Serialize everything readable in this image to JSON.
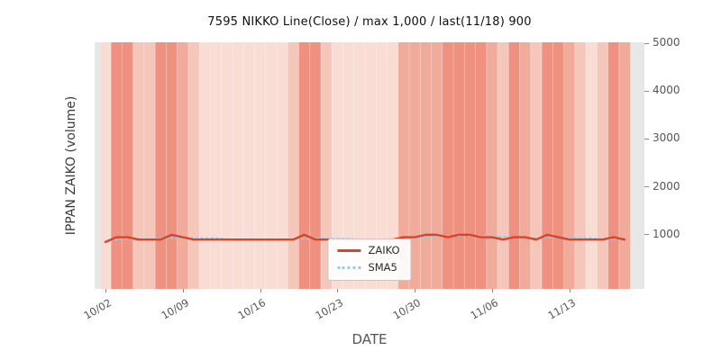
{
  "header": {
    "title": "7595 NIKKO Line(Close) / max 1,000 / last(11/18) 900"
  },
  "chart_data": {
    "type": "line",
    "title": "7595 NIKKO Line(Close) / max 1,000 / last(11/18) 900",
    "xlabel": "DATE",
    "ylabel": "IPPAN ZAIKO (volume)",
    "ylim": [
      -130,
      5020
    ],
    "yticks": [
      1000,
      2000,
      3000,
      4000,
      5000
    ],
    "yticks_side": "right",
    "xticks": [
      "10/02",
      "10/09",
      "10/16",
      "10/23",
      "10/30",
      "11/06",
      "11/13"
    ],
    "xtick_rotation": 30,
    "grid": false,
    "x": [
      "10/02",
      "10/03",
      "10/04",
      "10/05",
      "10/06",
      "10/07",
      "10/08",
      "10/09",
      "10/10",
      "10/11",
      "10/12",
      "10/13",
      "10/14",
      "10/15",
      "10/16",
      "10/17",
      "10/18",
      "10/19",
      "10/20",
      "10/21",
      "10/22",
      "10/23",
      "10/24",
      "10/25",
      "10/26",
      "10/27",
      "10/28",
      "10/29",
      "10/30",
      "10/31",
      "11/01",
      "11/02",
      "11/03",
      "11/04",
      "11/05",
      "11/06",
      "11/07",
      "11/08",
      "11/09",
      "11/10",
      "11/11",
      "11/12",
      "11/13",
      "11/14",
      "11/15",
      "11/16",
      "11/17",
      "11/18"
    ],
    "series": [
      {
        "name": "ZAIKO",
        "color": "#d6452c",
        "style": "solid",
        "values": [
          850,
          950,
          950,
          900,
          900,
          900,
          1000,
          950,
          900,
          900,
          900,
          900,
          900,
          900,
          900,
          900,
          900,
          900,
          1000,
          900,
          900,
          900,
          900,
          900,
          900,
          900,
          900,
          950,
          950,
          1000,
          1000,
          950,
          1000,
          1000,
          950,
          950,
          900,
          950,
          950,
          900,
          1000,
          950,
          900,
          900,
          900,
          900,
          950,
          900
        ]
      },
      {
        "name": "SMA5",
        "color": "#9ecae1",
        "style": "dotted",
        "derived": "5-day moving average of ZAIKO"
      }
    ],
    "background_bands": {
      "palette": [
        "#fcece7",
        "#f9ddd5",
        "#f5c6ba",
        "#f1ab9b",
        "#ee9181"
      ],
      "levels": [
        1,
        4,
        4,
        2,
        2,
        4,
        4,
        3,
        2,
        1,
        1,
        1,
        1,
        1,
        1,
        1,
        1,
        2,
        4,
        4,
        2,
        1,
        1,
        1,
        1,
        1,
        1,
        3,
        3,
        3,
        3,
        4,
        4,
        4,
        4,
        3,
        2,
        4,
        3,
        2,
        4,
        4,
        3,
        2,
        1,
        2,
        4,
        3
      ]
    },
    "plot_margin_color": "#e7e7e7",
    "legend": {
      "position": "lower center",
      "entries": [
        "ZAIKO",
        "SMA5"
      ]
    }
  }
}
